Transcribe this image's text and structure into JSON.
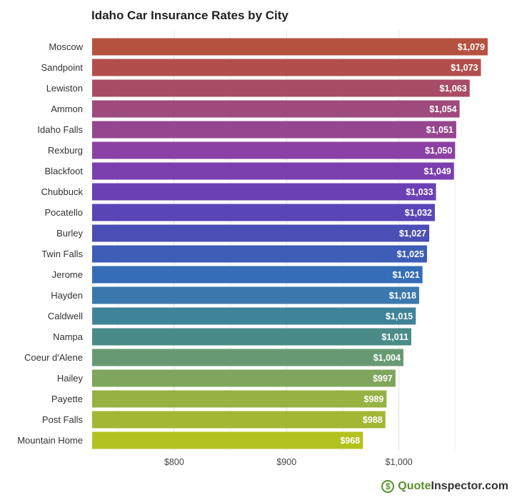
{
  "chart_data": {
    "type": "bar",
    "orientation": "horizontal",
    "title": "Idaho Car Insurance Rates by City",
    "categories": [
      "Moscow",
      "Sandpoint",
      "Lewiston",
      "Ammon",
      "Idaho Falls",
      "Rexburg",
      "Blackfoot",
      "Chubbuck",
      "Pocatello",
      "Burley",
      "Twin Falls",
      "Jerome",
      "Hayden",
      "Caldwell",
      "Nampa",
      "Coeur d'Alene",
      "Hailey",
      "Payette",
      "Post Falls",
      "Mountain Home"
    ],
    "values": [
      1079,
      1073,
      1063,
      1054,
      1051,
      1050,
      1049,
      1033,
      1032,
      1027,
      1025,
      1021,
      1018,
      1015,
      1011,
      1004,
      997,
      989,
      988,
      968
    ],
    "value_labels": [
      "$1,079",
      "$1,073",
      "$1,063",
      "$1,054",
      "$1,051",
      "$1,050",
      "$1,049",
      "$1,033",
      "$1,032",
      "$1,027",
      "$1,025",
      "$1,021",
      "$1,018",
      "$1,015",
      "$1,011",
      "$1,004",
      "$997",
      "$989",
      "$988",
      "$968"
    ],
    "colors": [
      "#b5513f",
      "#b24f4d",
      "#a84c66",
      "#9f4a7c",
      "#96468e",
      "#8b41a3",
      "#7b3fb0",
      "#6c40b5",
      "#5b44b6",
      "#4b4eb5",
      "#3e5db6",
      "#366db8",
      "#3a78ad",
      "#3f8399",
      "#4a8b87",
      "#679a72",
      "#7ea65c",
      "#95b242",
      "#a4b735",
      "#b4c21f"
    ],
    "xlim": [
      727,
      1100
    ],
    "xticks": [
      800,
      900,
      1000
    ],
    "xtick_labels": [
      "$800",
      "$900",
      "$1,000"
    ],
    "grid": true,
    "xlabel": "",
    "ylabel": ""
  },
  "logo": {
    "icon_glyph": "$",
    "text_brand": "Quote",
    "text_rest": "Inspector.com"
  }
}
